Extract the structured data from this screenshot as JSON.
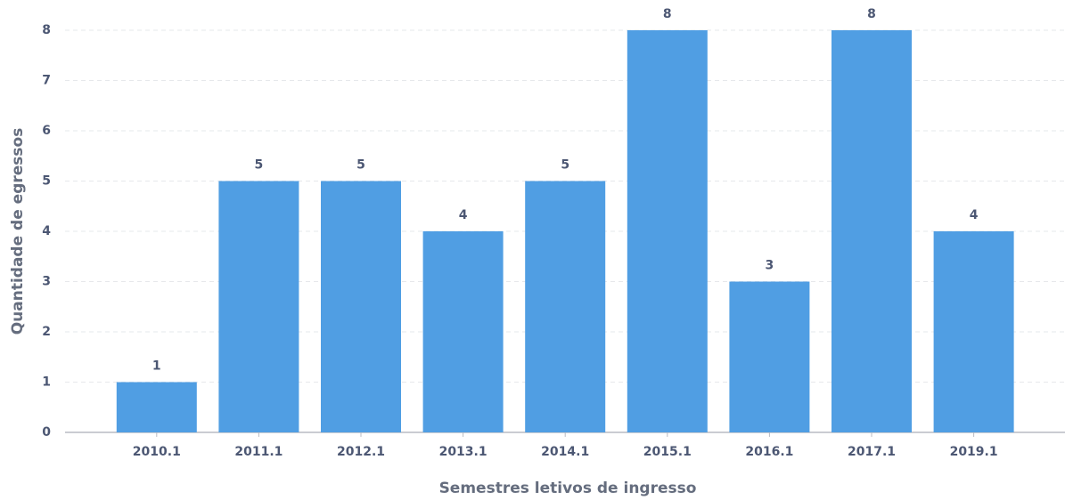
{
  "chart_data": {
    "type": "bar",
    "x_label": "Semestres letivos de ingresso",
    "y_label": "Quantidade de egressos",
    "categories": [
      "2010.1",
      "2011.1",
      "2012.1",
      "2013.1",
      "2014.1",
      "2015.1",
      "2016.1",
      "2017.1",
      "2019.1"
    ],
    "values": [
      1,
      5,
      5,
      4,
      5,
      8,
      3,
      8,
      4
    ],
    "color": "#509ee3",
    "ylim": [
      0,
      8
    ],
    "yticks": [
      0,
      1,
      2,
      3,
      4,
      5,
      6,
      7,
      8
    ],
    "grid": true
  }
}
